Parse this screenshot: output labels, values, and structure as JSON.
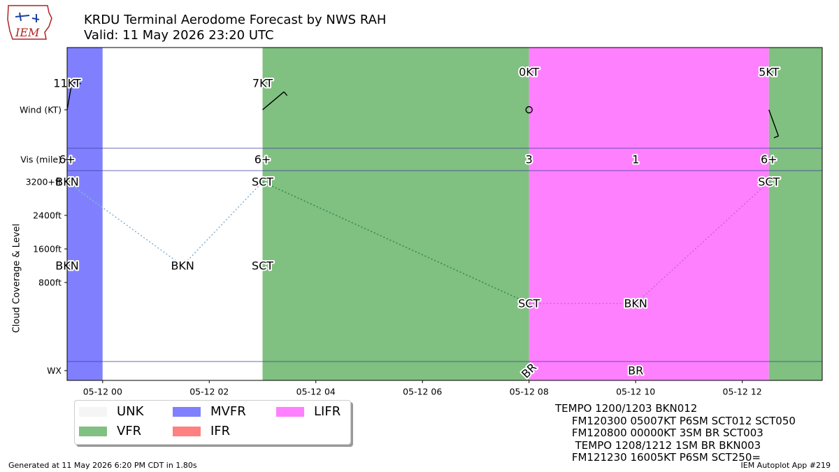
{
  "header": {
    "title_line1": "KRDU Terminal Aerodome Forecast by NWS RAH",
    "title_line2": "Valid: 11 May 2026 23:20 UTC"
  },
  "logo": {
    "text": "IEM",
    "icon": "iem-logo-icon"
  },
  "footer": {
    "left": "Generated at 11 May 2026 6:20 PM CDT in 1.80s",
    "right": "IEM Autoplot App #219"
  },
  "colors": {
    "UNK": "#f5f5f5",
    "VFR": "#80c080",
    "MVFR": "#8080ff",
    "IFR": "#ff8080",
    "LIFR": "#ff80ff"
  },
  "legend": [
    {
      "label": "UNK",
      "category": "UNK"
    },
    {
      "label": "VFR",
      "category": "VFR"
    },
    {
      "label": "MVFR",
      "category": "MVFR"
    },
    {
      "label": "IFR",
      "category": "IFR"
    },
    {
      "label": "LIFR",
      "category": "LIFR"
    }
  ],
  "taf_text": [
    "TEMPO 1200/1203 BKN012",
    "     FM120300 05007KT P6SM SCT012 SCT050",
    "     FM120800 00000KT 3SM BR SCT003",
    "      TEMPO 1208/1212 1SM BR BKN003",
    "     FM121230 16005KT P6SM SCT250="
  ],
  "chart_data": {
    "type": "timeline",
    "x_range": [
      "2026-05-11 23:20",
      "2026-05-12 13:30"
    ],
    "x_ticks": [
      "05-12 00",
      "05-12 02",
      "05-12 04",
      "05-12 06",
      "05-12 08",
      "05-12 10",
      "05-12 12"
    ],
    "y_ticks": [
      {
        "label": "Wind (KT)"
      },
      {
        "label": "Vis (mile)"
      },
      {
        "label": "3200+ft"
      },
      {
        "label": "2400ft"
      },
      {
        "label": "1600ft"
      },
      {
        "label": "800ft"
      },
      {
        "label": "WX"
      }
    ],
    "ylabel": "Cloud Coverage & Level",
    "category_bands": [
      {
        "start": "2026-05-11 23:20",
        "end": "2026-05-12 00:00",
        "category": "MVFR"
      },
      {
        "start": "2026-05-12 00:00",
        "end": "2026-05-12 03:00",
        "category": "none"
      },
      {
        "start": "2026-05-12 03:00",
        "end": "2026-05-12 08:00",
        "category": "VFR"
      },
      {
        "start": "2026-05-12 08:00",
        "end": "2026-05-12 12:30",
        "category": "LIFR"
      },
      {
        "start": "2026-05-12 12:30",
        "end": "2026-05-12 13:30",
        "category": "VFR"
      }
    ],
    "wind": [
      {
        "time": "2026-05-11 23:20",
        "label": "11KT",
        "dir": 10,
        "speed": 11
      },
      {
        "time": "2026-05-12 03:00",
        "label": "7KT",
        "dir": 50,
        "speed": 7
      },
      {
        "time": "2026-05-12 08:00",
        "label": "0KT",
        "dir": 0,
        "speed": 0
      },
      {
        "time": "2026-05-12 12:30",
        "label": "5KT",
        "dir": 160,
        "speed": 5
      }
    ],
    "visibility": [
      {
        "time": "2026-05-11 23:20",
        "label": "6+"
      },
      {
        "time": "2026-05-12 03:00",
        "label": "6+"
      },
      {
        "time": "2026-05-12 08:00",
        "label": "3"
      },
      {
        "time": "2026-05-12 10:00",
        "label": "1"
      },
      {
        "time": "2026-05-12 12:30",
        "label": "6+"
      }
    ],
    "cloud_layers": [
      {
        "time": "2026-05-11 23:20",
        "cover": "BKN",
        "level_ft": 3200
      },
      {
        "time": "2026-05-11 23:20",
        "cover": "BKN",
        "level_ft": 1200
      },
      {
        "time": "2026-05-12 01:30",
        "cover": "BKN",
        "level_ft": 1200
      },
      {
        "time": "2026-05-12 03:00",
        "cover": "SCT",
        "level_ft": 3200
      },
      {
        "time": "2026-05-12 03:00",
        "cover": "SCT",
        "level_ft": 1200
      },
      {
        "time": "2026-05-12 08:00",
        "cover": "SCT",
        "level_ft": 300
      },
      {
        "time": "2026-05-12 10:00",
        "cover": "BKN",
        "level_ft": 300
      },
      {
        "time": "2026-05-12 12:30",
        "cover": "SCT",
        "level_ft": 3200
      }
    ],
    "cloud_lines": [
      {
        "from": 0,
        "to": 2,
        "color": "#8ab4d4"
      },
      {
        "from": 2,
        "to": 3,
        "color": "#8ab4d4"
      },
      {
        "from": 3,
        "to": 5,
        "color": "#2e8b57"
      },
      {
        "from": 5,
        "to": 6,
        "color": "#cc66cc"
      },
      {
        "from": 6,
        "to": 7,
        "color": "#cc66cc"
      }
    ],
    "weather": [
      {
        "time": "2026-05-12 08:00",
        "label": "BR",
        "rotated": true
      },
      {
        "time": "2026-05-12 10:00",
        "label": "BR",
        "rotated": false
      }
    ]
  }
}
